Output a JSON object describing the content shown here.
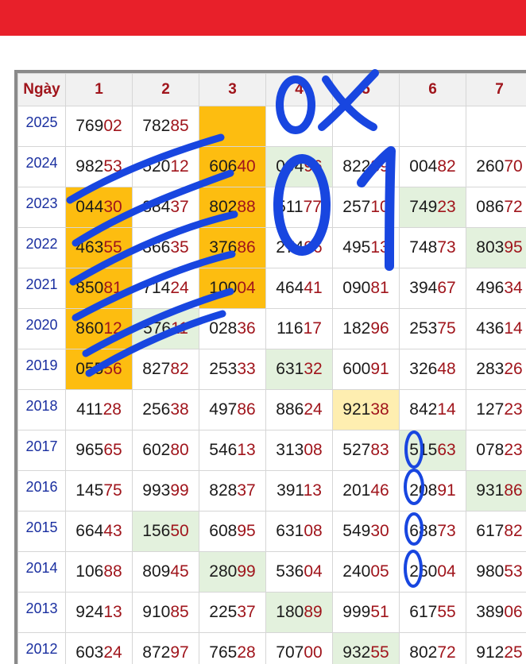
{
  "table": {
    "header": [
      "Ngày",
      "1",
      "2",
      "3",
      "4",
      "5",
      "6",
      "7"
    ],
    "rows": [
      [
        "2025",
        "76902",
        "78285",
        "",
        "",
        "",
        "",
        ""
      ],
      [
        "2024",
        "98253",
        "52012",
        "60640",
        "09496",
        "82239",
        "00482",
        "26070"
      ],
      [
        "2023",
        "04430",
        "88437",
        "80288",
        "51177",
        "25710",
        "74923",
        "08672"
      ],
      [
        "2022",
        "46355",
        "36635",
        "37686",
        "27496",
        "49513",
        "74873",
        "80395"
      ],
      [
        "2021",
        "85081",
        "71424",
        "10004",
        "46441",
        "09081",
        "39467",
        "49634"
      ],
      [
        "2020",
        "86012",
        "57611",
        "02836",
        "11617",
        "18296",
        "25375",
        "43614"
      ],
      [
        "2019",
        "05556",
        "82782",
        "25333",
        "63132",
        "60091",
        "32648",
        "28326"
      ],
      [
        "2018",
        "41128",
        "25638",
        "49786",
        "88624",
        "92138",
        "84214",
        "12723"
      ],
      [
        "2017",
        "96565",
        "60280",
        "54613",
        "31308",
        "52783",
        "51563",
        "07823"
      ],
      [
        "2016",
        "14575",
        "99399",
        "82837",
        "39113",
        "20146",
        "20891",
        "93186"
      ],
      [
        "2015",
        "66443",
        "15650",
        "60895",
        "63108",
        "54930",
        "68873",
        "61782"
      ],
      [
        "2014",
        "10688",
        "80945",
        "28099",
        "53604",
        "24005",
        "26004",
        "98053"
      ],
      [
        "2013",
        "92413",
        "91085",
        "22537",
        "18089",
        "99951",
        "61755",
        "38906"
      ],
      [
        "2012",
        "60324",
        "87297",
        "76528",
        "70700",
        "93255",
        "80272",
        "91225"
      ]
    ]
  }
}
